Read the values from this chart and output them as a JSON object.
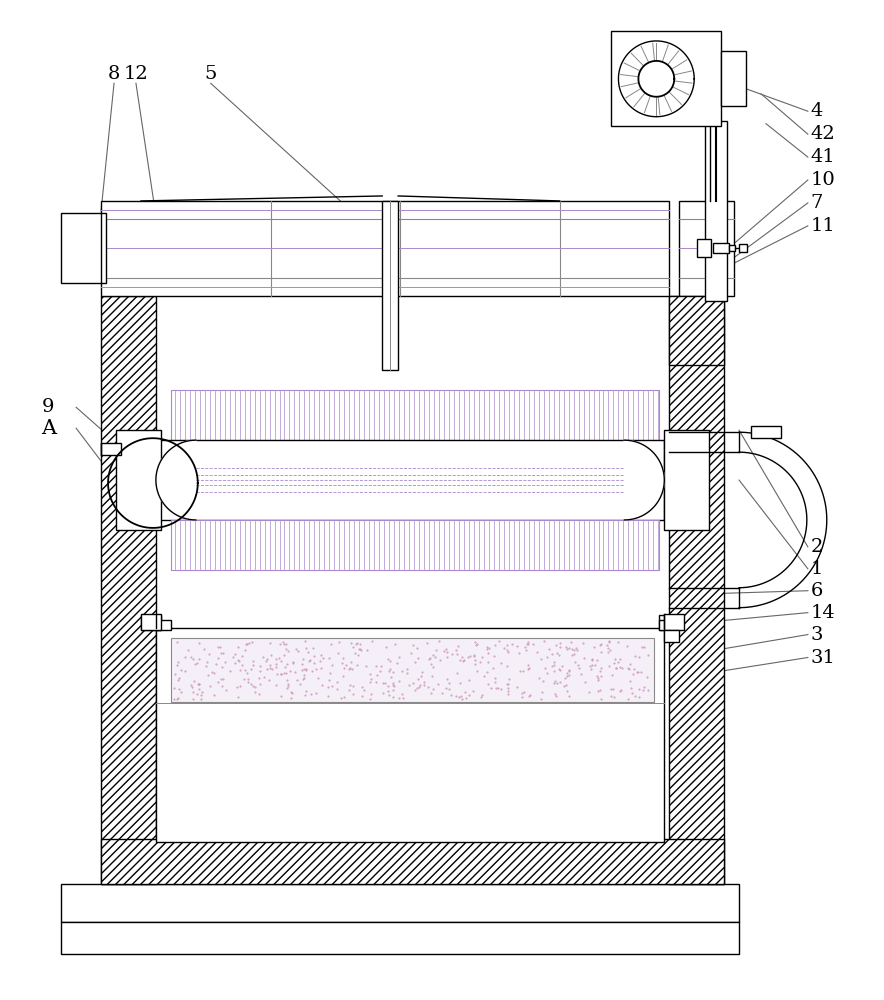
{
  "bg_color": "#ffffff",
  "line_color": "#000000",
  "gray_line": "#888888",
  "purple_line": "#aa88cc",
  "light_purple_fill": "#e8e0f0",
  "hatch_gray": "#aaaaaa",
  "figsize": [
    8.84,
    10.0
  ],
  "dpi": 100,
  "label_color": "#666666",
  "lw": 1.0
}
